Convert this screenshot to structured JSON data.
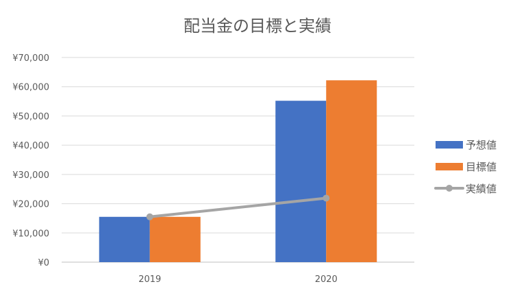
{
  "chart_data": {
    "type": "bar",
    "title": "配当金の目標と実績",
    "categories": [
      "2019",
      "2020"
    ],
    "series": [
      {
        "name": "予想値",
        "kind": "bar",
        "color": "#4472C4",
        "values": [
          15500,
          55200
        ]
      },
      {
        "name": "目標値",
        "kind": "bar",
        "color": "#ED7D31",
        "values": [
          15500,
          62200
        ]
      },
      {
        "name": "実績値",
        "kind": "line",
        "color": "#A5A5A5",
        "values": [
          15500,
          21900
        ]
      }
    ],
    "ylim": [
      0,
      70000
    ],
    "yticks": [
      "¥0",
      "¥10,000",
      "¥20,000",
      "¥30,000",
      "¥40,000",
      "¥50,000",
      "¥60,000",
      "¥70,000"
    ],
    "grid": true,
    "legend_position": "right"
  }
}
